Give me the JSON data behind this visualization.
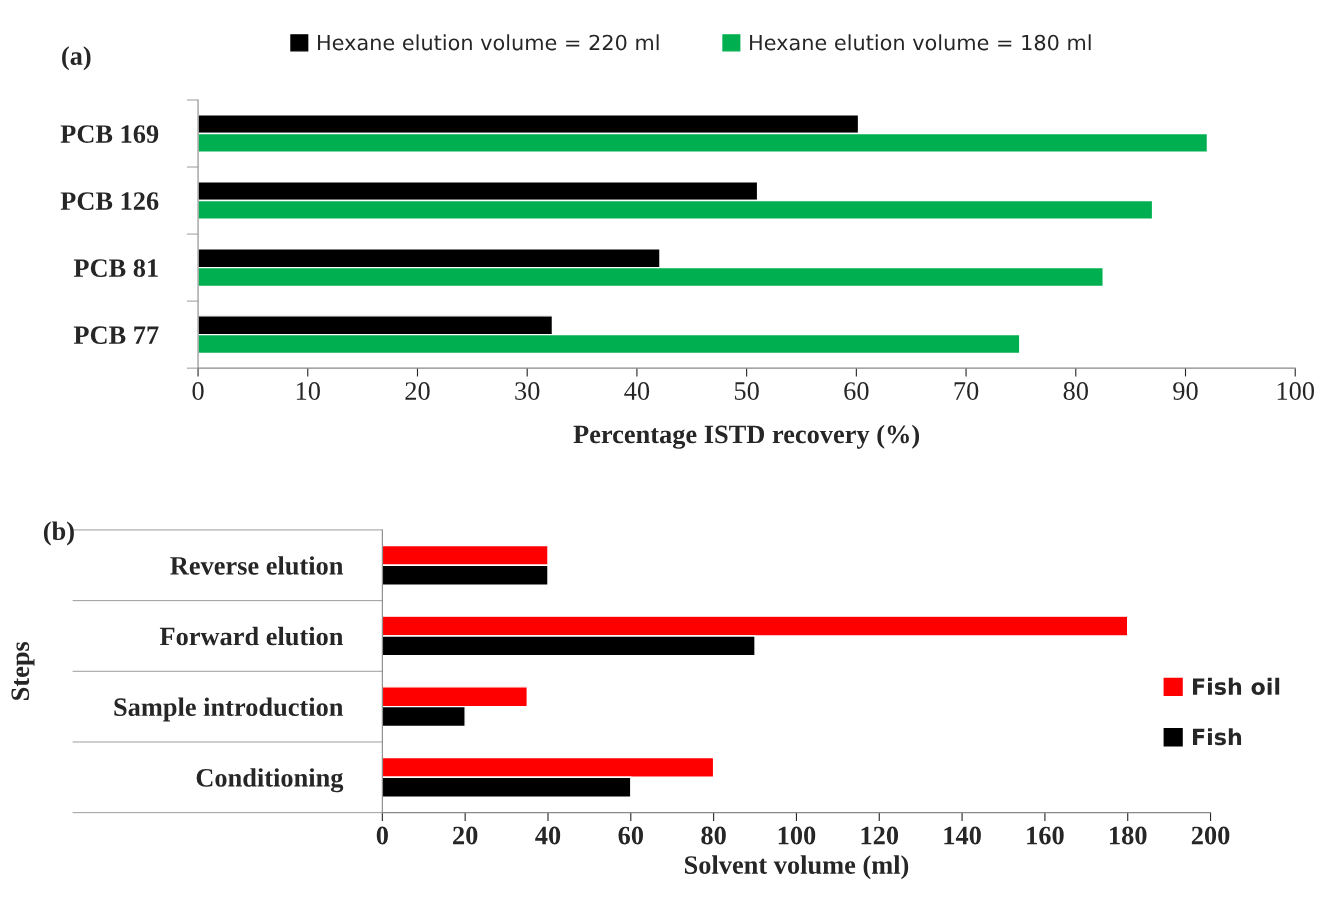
{
  "chart_data": [
    {
      "type": "bar",
      "orientation": "horizontal",
      "title": "(a)",
      "xlabel": "Percentage ISTD recovery (%)",
      "categories": [
        "PCB 169",
        "PCB 126",
        "PCB 81",
        "PCB 77"
      ],
      "series": [
        {
          "name": "Hexane elution volume = 220 ml",
          "color": "#000000",
          "values": [
            60.2,
            51.0,
            42.1,
            32.3
          ]
        },
        {
          "name": "Hexane elution volume = 180 ml",
          "color": "#00b050",
          "values": [
            92.0,
            87.0,
            82.5,
            74.9
          ]
        }
      ],
      "xlim": [
        0,
        100
      ],
      "xticks": [
        0,
        10,
        20,
        30,
        40,
        50,
        60,
        70,
        80,
        90,
        100
      ],
      "grid": false,
      "legend": "top"
    },
    {
      "type": "bar",
      "orientation": "horizontal",
      "title": "(b)",
      "xlabel": "Solvent volume (ml)",
      "ylabel": "Steps",
      "categories": [
        "Reverse elution",
        "Forward elution",
        "Sample introduction",
        "Conditioning"
      ],
      "series": [
        {
          "name": "Fish oil",
          "color": "#ff0000",
          "values": [
            40,
            180,
            35,
            80
          ]
        },
        {
          "name": "Fish",
          "color": "#000000",
          "values": [
            40,
            90,
            20,
            60
          ]
        }
      ],
      "xlim": [
        0,
        200
      ],
      "xticks": [
        0,
        20,
        40,
        60,
        80,
        100,
        120,
        140,
        160,
        180,
        200
      ],
      "grid": false,
      "legend": "right"
    }
  ]
}
